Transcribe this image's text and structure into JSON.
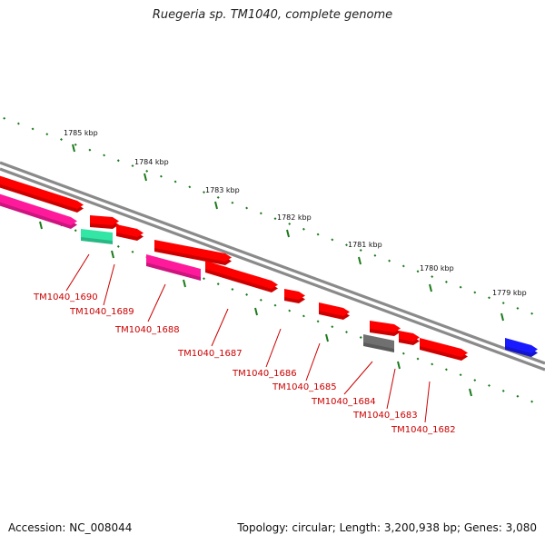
{
  "title": "Ruegeria sp. TM1040, complete genome",
  "footer": {
    "accession": "Accession: NC_008044",
    "summary": "Topology: circular; Length: 3,200,938 bp; Genes: 3,080"
  },
  "colors": {
    "backbone": "#8a8a8a",
    "ticks": "#1a7a1a",
    "locus_label": "#cc0000"
  },
  "scale_labels": [
    "1785 kbp",
    "1784 kbp",
    "1783 kbp",
    "1782 kbp",
    "1781 kbp",
    "1780 kbp",
    "1779 kbp"
  ],
  "genes": [
    {
      "color": "#ff0000"
    },
    {
      "color": "#ff1a9c"
    },
    {
      "color": "#ff0000"
    },
    {
      "color": "#ff0000"
    },
    {
      "color": "#33e6a6"
    },
    {
      "color": "#ff0000"
    },
    {
      "color": "#ff1a9c"
    },
    {
      "color": "#ff0000"
    },
    {
      "color": "#ff0000"
    },
    {
      "color": "#ff0000"
    },
    {
      "color": "#ff0000"
    },
    {
      "color": "#707070"
    },
    {
      "color": "#ff0000"
    },
    {
      "color": "#ff0000"
    },
    {
      "color": "#1a1aff"
    }
  ],
  "loci": [
    "TM1040_1690",
    "TM1040_1689",
    "TM1040_1688",
    "TM1040_1687",
    "TM1040_1686",
    "TM1040_1685",
    "TM1040_1684",
    "TM1040_1683",
    "TM1040_1682"
  ]
}
